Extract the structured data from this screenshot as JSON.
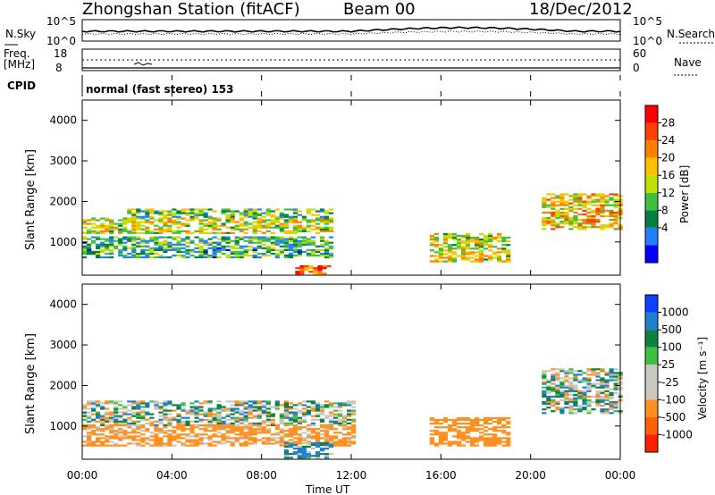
{
  "header": {
    "title": "Zhongshan Station (fitACF)",
    "beam": "Beam 00",
    "date": "18/Dec/2012"
  },
  "noise_panel": {
    "left_label": "N.Sky",
    "right_label": "N.Search",
    "left_ticks": [
      "10^5",
      "10^0"
    ],
    "right_ticks": [
      "10^5",
      "10^0"
    ]
  },
  "freq_panel": {
    "left_label_1": "Freq.",
    "left_label_2": "[MHz]",
    "left_ticks": [
      "18",
      "8"
    ],
    "right_label": "Nave",
    "right_ticks": [
      "60",
      "0"
    ]
  },
  "cpid": {
    "label": "CPID",
    "mode": "normal (fast stereo) 153"
  },
  "power_panel": {
    "ylabel": "Slant Range [km]",
    "yticks": [
      "4000",
      "3000",
      "2000",
      "1000"
    ],
    "cbar_label": "Power [dB]",
    "cbar_ticks": [
      "28",
      "24",
      "20",
      "16",
      "12",
      "8",
      "4"
    ],
    "cbar_colors": [
      "#ff0000",
      "#ff4000",
      "#ff8000",
      "#ffc000",
      "#c0e000",
      "#40c040",
      "#008040",
      "#2080ff",
      "#0000ff"
    ]
  },
  "velocity_panel": {
    "ylabel": "Slant Range [km]",
    "yticks": [
      "4000",
      "3000",
      "2000",
      "1000"
    ],
    "cbar_label": "Velocity [m s⁻¹]",
    "cbar_ticks": [
      "1000",
      "500",
      "100",
      "25",
      "-25",
      "-100",
      "-500",
      "-1000"
    ],
    "cbar_colors": [
      "#1040ff",
      "#2080d0",
      "#108040",
      "#40c040",
      "#c8c8c0",
      "#c8c8c0",
      "#ff9020",
      "#ff6000",
      "#ff2000"
    ]
  },
  "x_axis": {
    "ticks": [
      "00:00",
      "04:00",
      "08:00",
      "12:00",
      "16:00",
      "20:00",
      "00:00"
    ],
    "label": "Time UT"
  },
  "chart_data": [
    {
      "type": "heatmap",
      "title": "Power [dB]",
      "xlabel": "Time UT",
      "ylabel": "Slant Range [km]",
      "xlim": [
        0,
        24
      ],
      "ylim": [
        180,
        4500
      ],
      "zlim": [
        0,
        30
      ],
      "features": [
        {
          "t": [
            0.0,
            11.0
          ],
          "range": [
            1200,
            1600
          ],
          "value": 16
        },
        {
          "t": [
            2.0,
            11.0
          ],
          "range": [
            1600,
            1800
          ],
          "value": 12
        },
        {
          "t": [
            0.0,
            11.0
          ],
          "range": [
            600,
            1100
          ],
          "value": 10
        },
        {
          "t": [
            9.5,
            11.0
          ],
          "range": [
            200,
            400
          ],
          "value": 24
        },
        {
          "t": [
            15.5,
            19.0
          ],
          "range": [
            500,
            1200
          ],
          "value": 16
        },
        {
          "t": [
            20.5,
            24.0
          ],
          "range": [
            1300,
            2200
          ],
          "value": 18
        }
      ]
    },
    {
      "type": "heatmap",
      "title": "Velocity [m s⁻¹]",
      "xlabel": "Time UT",
      "ylabel": "Slant Range [km]",
      "xlim": [
        0,
        24
      ],
      "ylim": [
        180,
        4500
      ],
      "zlim": [
        -1000,
        1000
      ],
      "features": [
        {
          "t": [
            0.0,
            12.0
          ],
          "range": [
            1000,
            1600
          ],
          "value": 0
        },
        {
          "t": [
            0.0,
            12.0
          ],
          "range": [
            500,
            1000
          ],
          "value": -200
        },
        {
          "t": [
            9.0,
            11.0
          ],
          "range": [
            200,
            600
          ],
          "value": 100
        },
        {
          "t": [
            15.5,
            19.0
          ],
          "range": [
            500,
            1200
          ],
          "value": -300
        },
        {
          "t": [
            20.5,
            24.0
          ],
          "range": [
            1300,
            2400
          ],
          "value": 0
        }
      ]
    }
  ]
}
